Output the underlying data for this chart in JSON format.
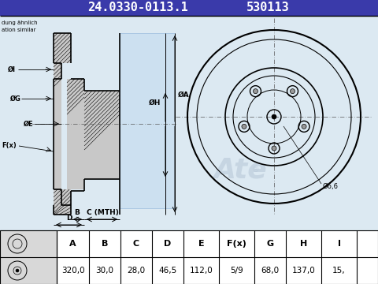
{
  "title1": "24.0330-0113.1",
  "title2": "530113",
  "bg_color": "#e8e8e8",
  "header_bg": "#4444cc",
  "draw_bg": "#dce8f0",
  "table_headers": [
    "A",
    "B",
    "C",
    "D",
    "E",
    "F(x)",
    "G",
    "H",
    "I"
  ],
  "table_values": [
    "320,0",
    "30,0",
    "28,0",
    "46,5",
    "112,0",
    "5/9",
    "68,0",
    "137,0",
    "15,"
  ],
  "side_text1": "dung ähnlich",
  "side_text2": "ation similar",
  "hole_label": "Ø6,6",
  "dim_I": "ØI",
  "dim_G": "ØG",
  "dim_E": "ØE",
  "dim_H": "ØH",
  "dim_A": "ØA",
  "dim_Fx": "F(x)",
  "label_B": "B",
  "label_C": "C (MTH)",
  "label_D": "D"
}
